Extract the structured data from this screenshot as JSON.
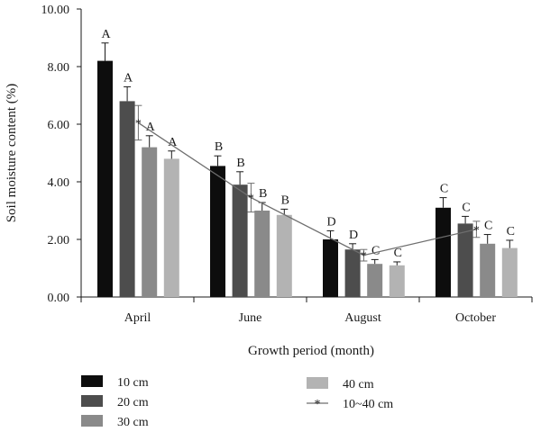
{
  "chart_data": {
    "type": "bar",
    "xlabel": "Growth period (month)",
    "ylabel": "Soil moisture content (%)",
    "ylim": [
      0,
      10
    ],
    "yticks": [
      "0.00",
      "2.00",
      "4.00",
      "6.00",
      "8.00",
      "10.00"
    ],
    "categories": [
      "April",
      "June",
      "August",
      "October"
    ],
    "series": [
      {
        "name": "10 cm",
        "color": "#0d0d0d",
        "values": [
          8.2,
          4.55,
          2.0,
          3.1
        ],
        "errors": [
          0.62,
          0.35,
          0.3,
          0.35
        ],
        "letters": [
          "A",
          "B",
          "D",
          "C"
        ]
      },
      {
        "name": "20 cm",
        "color": "#4d4d4d",
        "values": [
          6.8,
          3.9,
          1.65,
          2.55
        ],
        "errors": [
          0.5,
          0.45,
          0.2,
          0.25
        ],
        "letters": [
          "A",
          "B",
          "D",
          "C"
        ]
      },
      {
        "name": "30 cm",
        "color": "#8a8a8a",
        "values": [
          5.2,
          3.0,
          1.15,
          1.85
        ],
        "errors": [
          0.4,
          0.28,
          0.15,
          0.32
        ],
        "letters": [
          "A",
          "B",
          "C",
          "C"
        ]
      },
      {
        "name": "40 cm",
        "color": "#b3b3b3",
        "values": [
          4.8,
          2.85,
          1.1,
          1.7
        ],
        "errors": [
          0.27,
          0.2,
          0.12,
          0.27
        ],
        "letters": [
          "A",
          "B",
          "C",
          "C"
        ]
      }
    ],
    "line_series": {
      "name": "10~40 cm",
      "color": "#6e6e6e",
      "values": [
        6.05,
        3.45,
        1.45,
        2.35
      ],
      "errors": [
        0.6,
        0.5,
        0.2,
        0.28
      ]
    },
    "legend": {
      "left": [
        "10 cm",
        "20 cm",
        "30 cm"
      ],
      "right": [
        "40 cm",
        "10~40 cm"
      ]
    }
  }
}
